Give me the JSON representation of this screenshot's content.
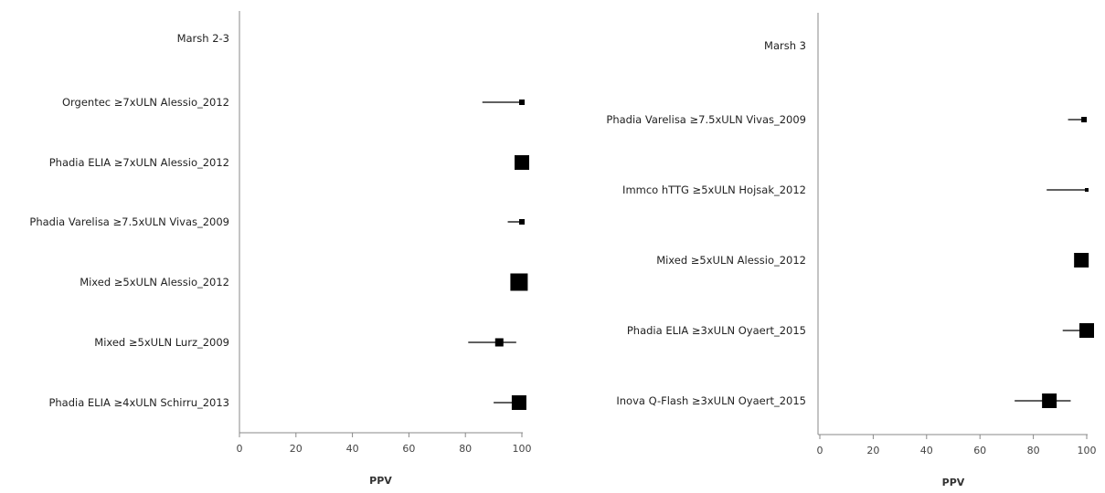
{
  "chart_data": [
    {
      "type": "forest",
      "title": "",
      "xlabel": "PPV",
      "ylabel": "",
      "xlim": [
        0,
        100
      ],
      "xticks": [
        "0",
        "20",
        "40",
        "60",
        "80",
        "100"
      ],
      "grid": false,
      "header": "Marsh 2-3",
      "rows": [
        {
          "label": "Orgentec ≥7xULN Alessio_2012",
          "ppv": 100,
          "ci": [
            86,
            100
          ],
          "weight": "small"
        },
        {
          "label": "Phadia ELIA ≥7xULN Alessio_2012",
          "ppv": 100,
          "ci": [
            100,
            100
          ],
          "weight": "large"
        },
        {
          "label": "Phadia Varelisa ≥7.5xULN Vivas_2009",
          "ppv": 100,
          "ci": [
            95,
            100
          ],
          "weight": "small"
        },
        {
          "label": "Mixed ≥5xULN Alessio_2012",
          "ppv": 99,
          "ci": [
            99,
            99
          ],
          "weight": "xlarge"
        },
        {
          "label": "Mixed ≥5xULN Lurz_2009",
          "ppv": 92,
          "ci": [
            81,
            98
          ],
          "weight": "medium"
        },
        {
          "label": "Phadia ELIA ≥4xULN Schirru_2013",
          "ppv": 99,
          "ci": [
            90,
            100
          ],
          "weight": "large"
        }
      ]
    },
    {
      "type": "forest",
      "title": "",
      "xlabel": "PPV",
      "ylabel": "",
      "xlim": [
        0,
        100
      ],
      "xticks": [
        "0",
        "20",
        "40",
        "60",
        "80",
        "100"
      ],
      "grid": false,
      "header": "Marsh 3",
      "rows": [
        {
          "label": "Phadia Varelisa ≥7.5xULN Vivas_2009",
          "ppv": 99,
          "ci": [
            93,
            100
          ],
          "weight": "small"
        },
        {
          "label": "Immco hTTG ≥5xULN Hojsak_2012",
          "ppv": 100,
          "ci": [
            85,
            100
          ],
          "weight": "tiny"
        },
        {
          "label": "Mixed ≥5xULN Alessio_2012",
          "ppv": 98,
          "ci": [
            98,
            98
          ],
          "weight": "large"
        },
        {
          "label": "Phadia ELIA ≥3xULN Oyaert_2015",
          "ppv": 100,
          "ci": [
            91,
            100
          ],
          "weight": "large"
        },
        {
          "label": "Inova Q-Flash ≥3xULN Oyaert_2015",
          "ppv": 86,
          "ci": [
            73,
            94
          ],
          "weight": "large"
        }
      ]
    }
  ]
}
